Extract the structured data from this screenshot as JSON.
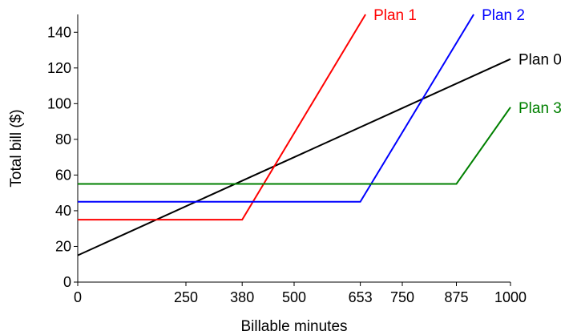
{
  "chart_data": {
    "type": "line",
    "title": "",
    "xlabel": "Billable minutes",
    "ylabel": "Total bill ($)",
    "xlim": [
      0,
      1000
    ],
    "ylim": [
      0,
      150
    ],
    "xticks": [
      0,
      250,
      380,
      500,
      653,
      750,
      875,
      1000
    ],
    "yticks": [
      0,
      20,
      40,
      60,
      80,
      100,
      120,
      140
    ],
    "grid": false,
    "series": [
      {
        "name": "Plan 0",
        "color": "#000000",
        "x": [
          0,
          1000
        ],
        "y": [
          15,
          125
        ]
      },
      {
        "name": "Plan 1",
        "color": "#ff0000",
        "x": [
          0,
          380,
          665
        ],
        "y": [
          35,
          35,
          150
        ]
      },
      {
        "name": "Plan 2",
        "color": "#0000ff",
        "x": [
          0,
          653,
          915
        ],
        "y": [
          45,
          45,
          150
        ]
      },
      {
        "name": "Plan 3",
        "color": "#008000",
        "x": [
          0,
          875,
          1000
        ],
        "y": [
          55,
          55,
          98
        ]
      }
    ]
  }
}
